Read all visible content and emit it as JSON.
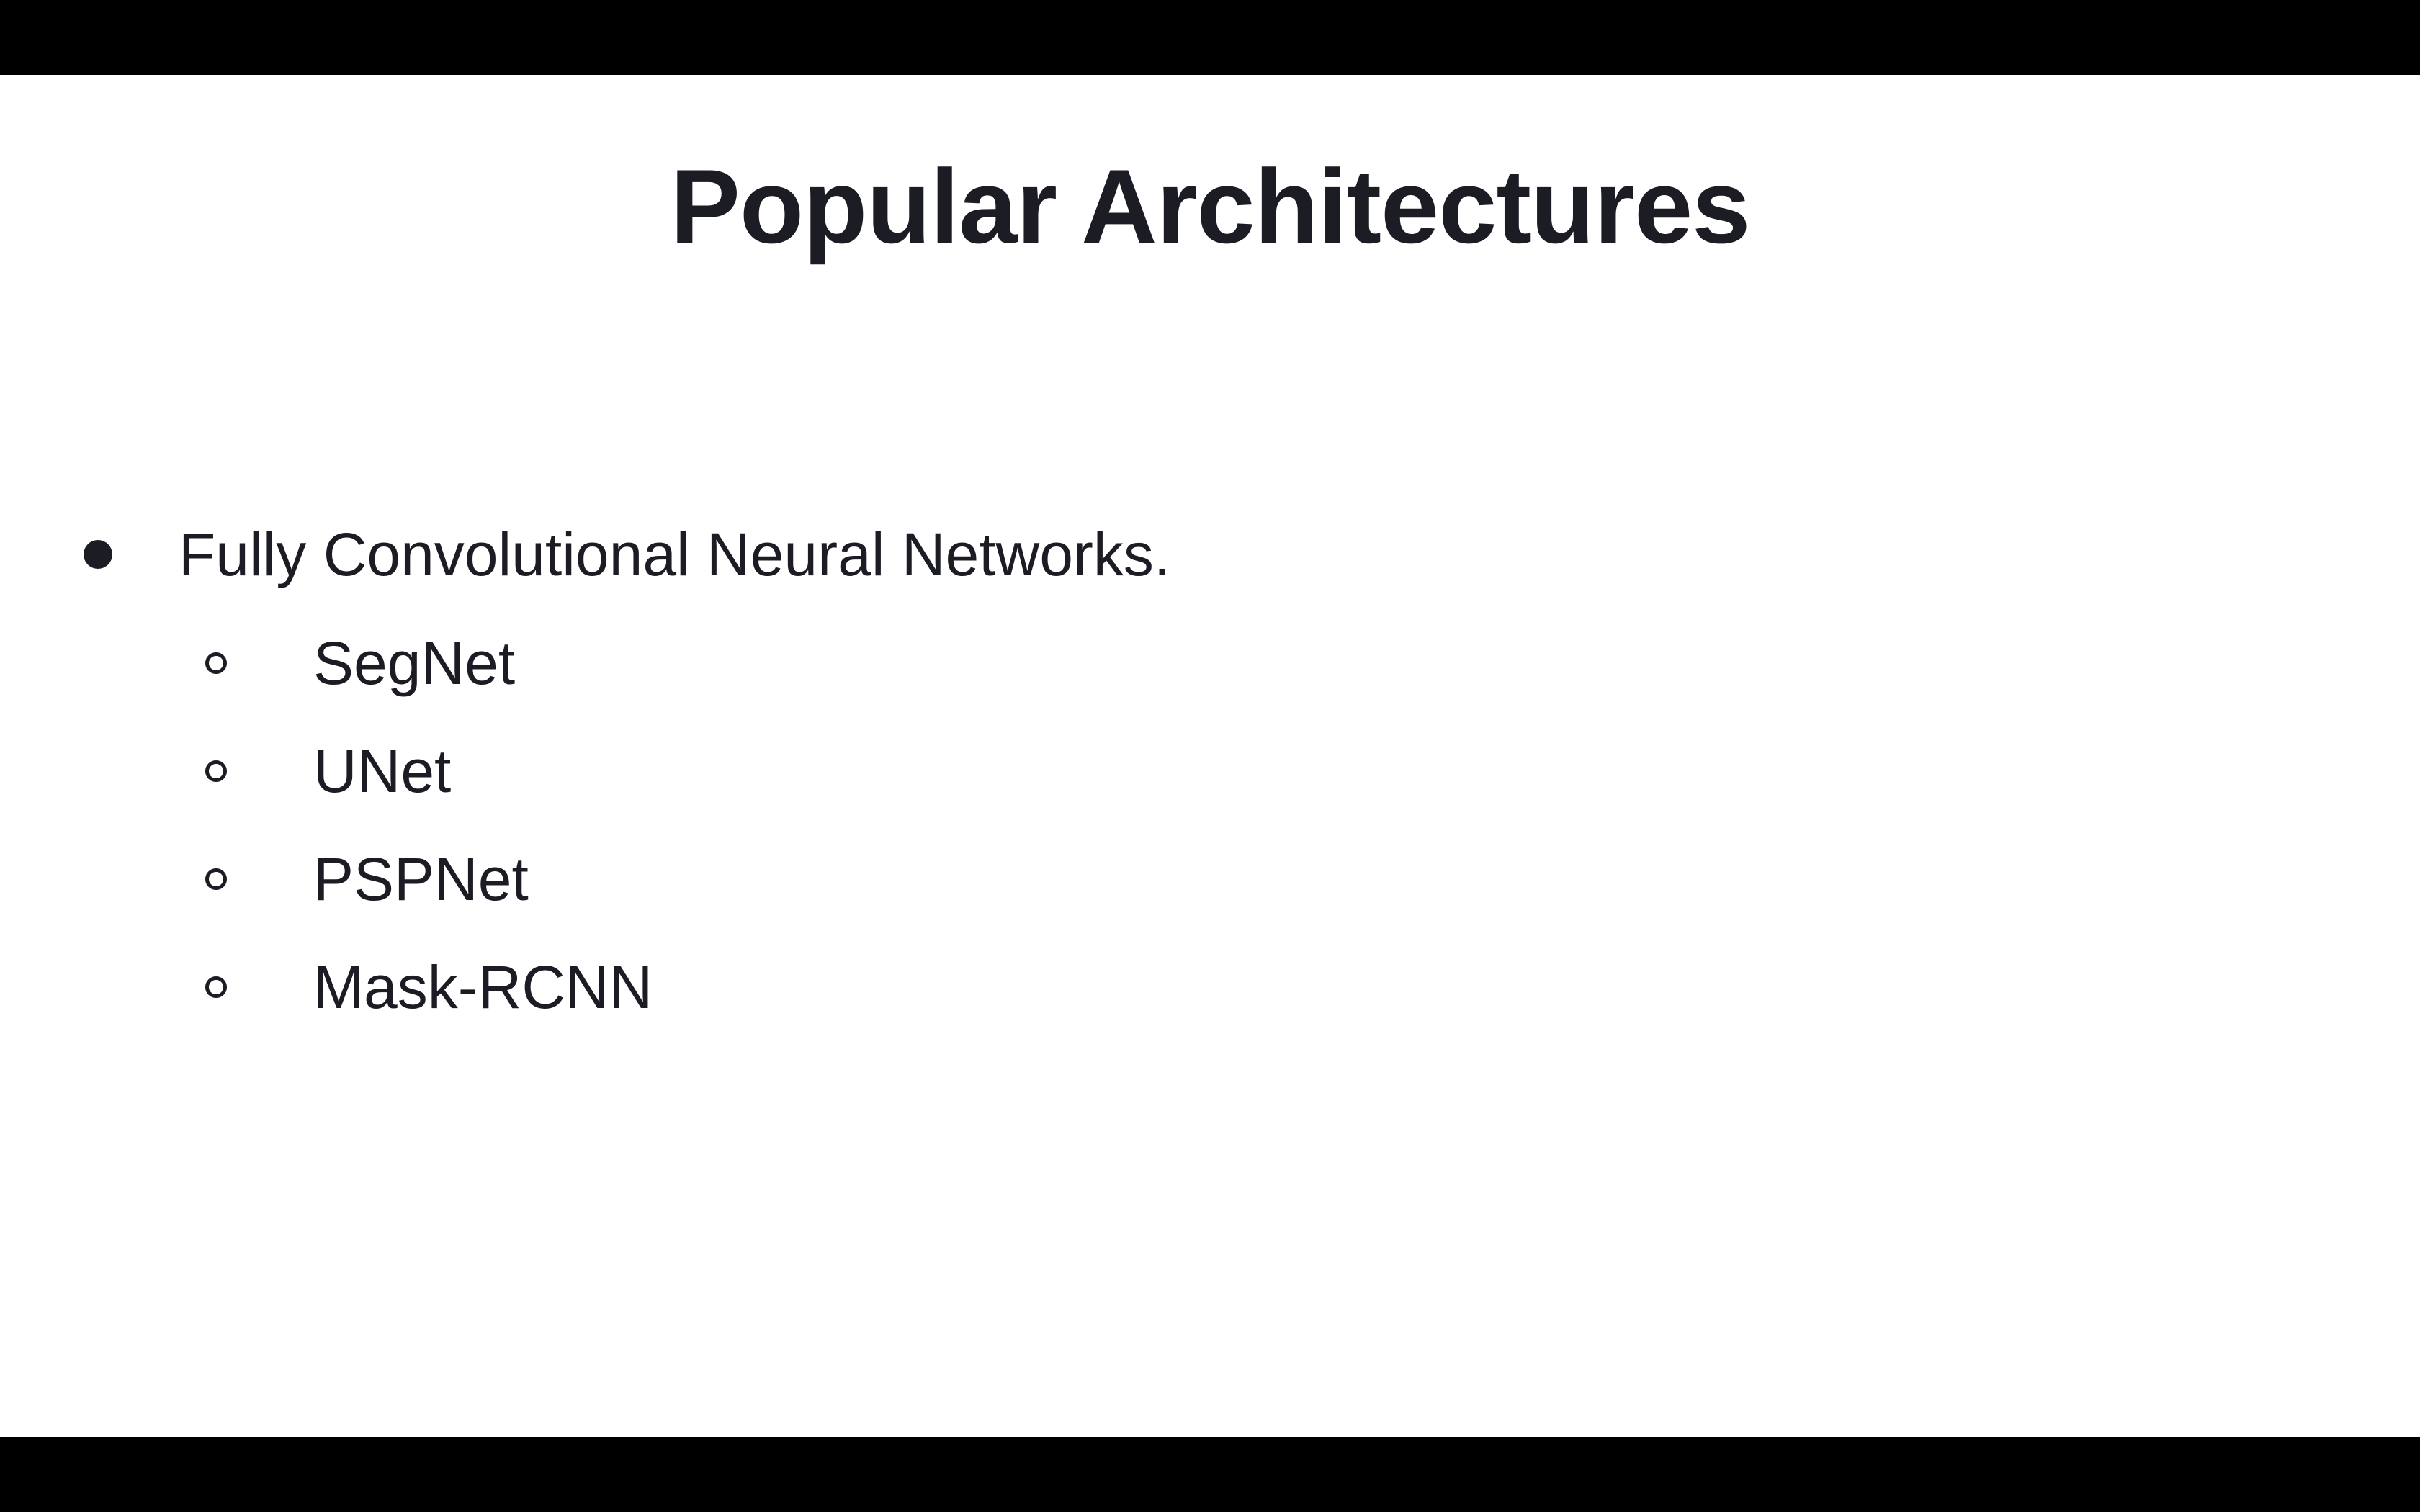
{
  "slide": {
    "title": "Popular Architectures",
    "bullets": [
      {
        "text": "Fully Convolutional Neural Networks.",
        "subitems": [
          "SegNet",
          "UNet",
          "PSPNet",
          "Mask-RCNN"
        ]
      }
    ]
  },
  "colors": {
    "text": "#1b1c24",
    "background": "#ffffff",
    "letterbox": "#000000"
  },
  "icons": {
    "level1_bullet": "filled-circle-icon",
    "level2_bullet": "hollow-circle-icon"
  }
}
